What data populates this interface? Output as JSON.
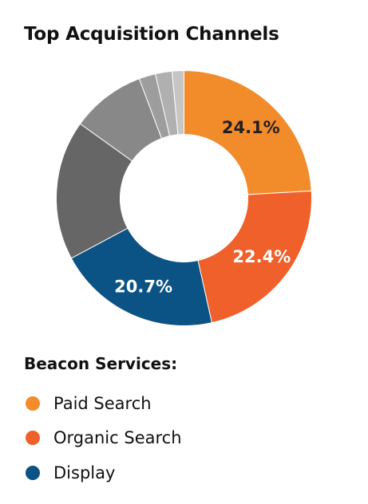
{
  "chart_data": {
    "type": "donut",
    "title": "Top Acquisition Channels",
    "slices": [
      {
        "value": 24.1,
        "label": "24.1%",
        "color": "#F28B2A",
        "label_color": "#231F20"
      },
      {
        "value": 22.4,
        "label": "22.4%",
        "color": "#F0602A",
        "label_color": "#FFFFFF"
      },
      {
        "value": 20.7,
        "label": "20.7%",
        "color": "#0B5285",
        "label_color": "#FFFFFF"
      },
      {
        "value": 17.7,
        "label": "",
        "color": "#666666"
      },
      {
        "value": 9.4,
        "label": "",
        "color": "#888888"
      },
      {
        "value": 2.1,
        "label": "",
        "color": "#9D9D9D"
      },
      {
        "value": 2.1,
        "label": "",
        "color": "#B0B0B0"
      },
      {
        "value": 1.5,
        "label": "",
        "color": "#C6C6C6"
      }
    ],
    "legend_title": "Beacon Services:",
    "legend": [
      {
        "name": "Paid Search",
        "color": "#F28B2A"
      },
      {
        "name": "Organic Search",
        "color": "#F0602A"
      },
      {
        "name": "Display",
        "color": "#0B5285"
      }
    ]
  }
}
